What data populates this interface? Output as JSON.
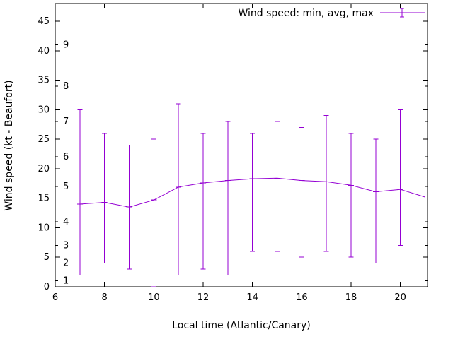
{
  "chart_data": {
    "type": "line",
    "subtype": "errorbars",
    "title": "",
    "legend": "Wind speed: min, avg, max",
    "xlabel": "Local time (Atlantic/Canary)",
    "ylabel": "Wind speed (kt - Beaufort)",
    "xlim": [
      6,
      21.1
    ],
    "ylim": [
      0,
      48
    ],
    "x_ticks": [
      6,
      8,
      10,
      12,
      14,
      16,
      18,
      20
    ],
    "y_ticks": [
      0,
      5,
      10,
      15,
      20,
      25,
      30,
      35,
      40,
      45
    ],
    "grid": false,
    "legend_position": "top-right-inside",
    "beaufort_tics": {
      "labels": [
        "1",
        "2",
        "3",
        "4",
        "5",
        "6",
        "7",
        "8",
        "9"
      ],
      "values": [
        1,
        4,
        7,
        11,
        17,
        22,
        28,
        34,
        41
      ]
    },
    "colors": {
      "series": "#9400d3",
      "axis": "#000000",
      "background": "#ffffff"
    },
    "series": [
      {
        "name": "Wind speed: min, avg, max",
        "color": "#9400d3",
        "points": [
          {
            "x": 7,
            "min": 2,
            "avg": 14.0,
            "max": 30
          },
          {
            "x": 8,
            "min": 4,
            "avg": 14.3,
            "max": 26
          },
          {
            "x": 9,
            "min": 3,
            "avg": 13.5,
            "max": 24
          },
          {
            "x": 10,
            "min": 0,
            "avg": 14.7,
            "max": 25
          },
          {
            "x": 11,
            "min": 2,
            "avg": 16.9,
            "max": 31
          },
          {
            "x": 12,
            "min": 3,
            "avg": 17.6,
            "max": 26
          },
          {
            "x": 13,
            "min": 2,
            "avg": 18.0,
            "max": 28
          },
          {
            "x": 14,
            "min": 6,
            "avg": 18.3,
            "max": 26
          },
          {
            "x": 15,
            "min": 6,
            "avg": 18.4,
            "max": 28
          },
          {
            "x": 16,
            "min": 5,
            "avg": 18.0,
            "max": 27
          },
          {
            "x": 17,
            "min": 6,
            "avg": 17.8,
            "max": 29
          },
          {
            "x": 18,
            "min": 5,
            "avg": 17.2,
            "max": 26
          },
          {
            "x": 19,
            "min": 4,
            "avg": 16.1,
            "max": 25
          },
          {
            "x": 20,
            "min": 7,
            "avg": 16.5,
            "max": 30
          },
          {
            "x": 21,
            "min": null,
            "avg": 15.2,
            "max": null
          }
        ]
      }
    ]
  }
}
